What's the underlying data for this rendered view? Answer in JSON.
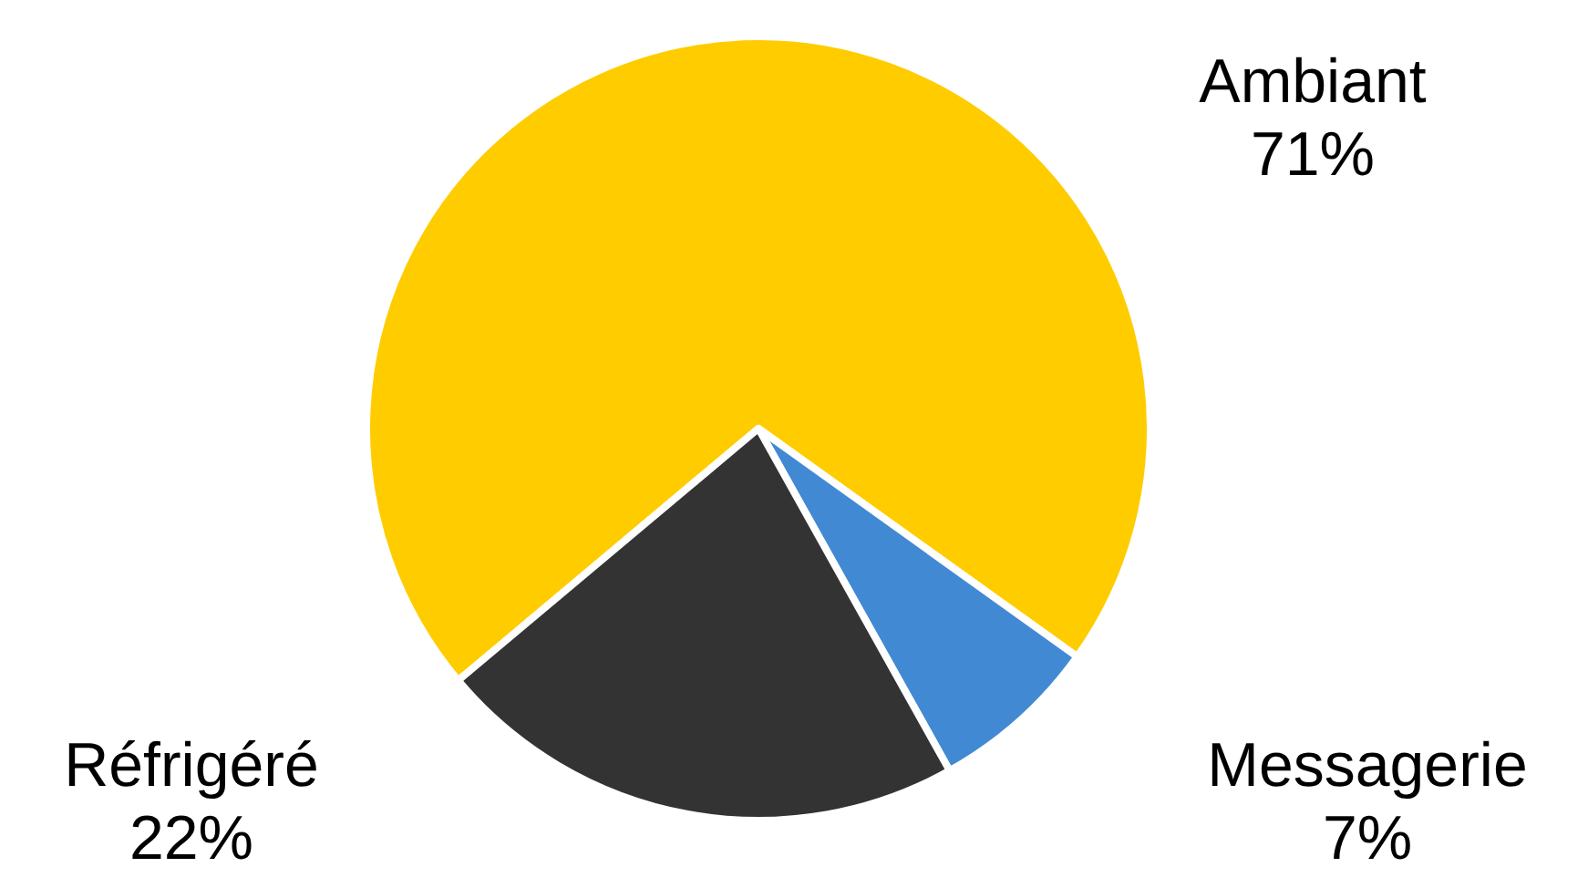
{
  "chart_data": {
    "type": "pie",
    "categories": [
      "Ambiant",
      "Messagerie",
      "Réfrigéré"
    ],
    "values": [
      71,
      7,
      22
    ],
    "value_labels": [
      "71%",
      "7%",
      "22%"
    ],
    "colors": [
      "#ffcc00",
      "#418ad3",
      "#333333"
    ]
  }
}
